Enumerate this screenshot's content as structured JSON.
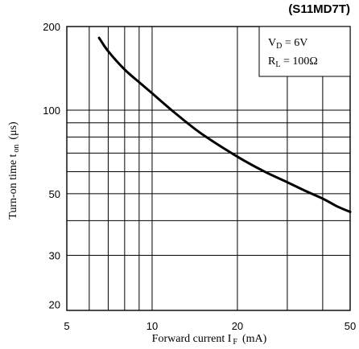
{
  "chart_data": {
    "type": "line",
    "title": "(S11MD7T)",
    "xlabel": {
      "main": "Forward current I",
      "sub": "F",
      "unit": "(mA)"
    },
    "ylabel": {
      "main": "Turn-on time t",
      "sub": "on",
      "unit": "(μs)"
    },
    "x_scale": "log",
    "y_scale": "log",
    "xlim": [
      5,
      50
    ],
    "ylim": [
      19,
      200
    ],
    "x_ticks": [
      {
        "value": 5,
        "label": "5"
      },
      {
        "value": 10,
        "label": "10"
      },
      {
        "value": 20,
        "label": "20"
      },
      {
        "value": 50,
        "label": "50"
      }
    ],
    "y_ticks": [
      {
        "value": 20,
        "label": "20"
      },
      {
        "value": 30,
        "label": "30"
      },
      {
        "value": 50,
        "label": "50"
      },
      {
        "value": 100,
        "label": "100"
      },
      {
        "value": 200,
        "label": "200"
      }
    ],
    "x_grid": [
      6,
      7,
      8,
      9,
      10,
      20,
      30,
      40
    ],
    "y_grid": [
      30,
      40,
      50,
      60,
      70,
      80,
      90,
      100
    ],
    "grid": true,
    "legend": {
      "placement": "top-right",
      "lines": [
        {
          "main": "V",
          "sub": "D",
          "rest": " = 6V"
        },
        {
          "main": "R",
          "sub": "L",
          "rest": " = 100Ω"
        }
      ]
    },
    "series": [
      {
        "x": [
          6.5,
          7,
          8,
          9,
          10,
          12,
          15,
          20,
          25,
          30,
          35,
          40,
          45,
          50
        ],
        "y": [
          182,
          163,
          140,
          126,
          115,
          98,
          82,
          68,
          60,
          55,
          51,
          48,
          45,
          43
        ]
      }
    ]
  }
}
